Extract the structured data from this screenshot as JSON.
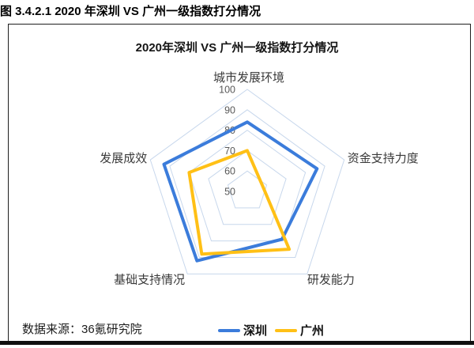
{
  "page": {
    "caption": "图 3.4.2.1 2020 年深圳 VS 广州一级指数打分情况",
    "source": "数据来源：36氪研究院"
  },
  "chart_data": {
    "type": "radar",
    "title": "2020年深圳 VS 广州一级指数打分情况",
    "categories": [
      "城市发展环境",
      "资金支持力度",
      "研发能力",
      "基础支持情况",
      "发展成效"
    ],
    "series": [
      {
        "name": "深圳",
        "color": "#3B7CDB",
        "values": [
          84,
          86,
          79,
          92,
          93
        ]
      },
      {
        "name": "广州",
        "color": "#FFC016",
        "values": [
          70,
          58,
          85,
          88,
          80
        ]
      }
    ],
    "scale": {
      "min": 50,
      "max": 100,
      "step": 10,
      "tick_labels": [
        "100",
        "90",
        "80",
        "70",
        "60",
        "50"
      ]
    },
    "grid_rings": [
      60,
      70,
      80,
      90,
      100
    ],
    "grid_color": "#C7D7EC",
    "tick_color": "#595959",
    "axis_label_color": "#3a3a3a",
    "grid": true,
    "legend_position": "bottom",
    "legend": [
      "深圳",
      "广州"
    ]
  }
}
